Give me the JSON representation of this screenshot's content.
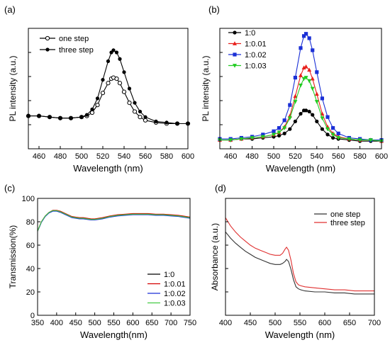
{
  "chart_data": [
    {
      "panel_label": "(a)",
      "type": "line",
      "xlabel": "Wavelength (nm)",
      "ylabel": "PL intensity (a.u.)",
      "xlim": [
        450,
        600
      ],
      "ylim": [
        0,
        1.1
      ],
      "xticks": [
        460,
        480,
        500,
        520,
        540,
        560,
        580,
        600
      ],
      "y_tick_labels_shown": false,
      "legend": "top-left",
      "grid": false,
      "series": [
        {
          "name": "one step",
          "marker": "open-circle",
          "color": "#000000",
          "x": [
            450,
            460,
            470,
            480,
            490,
            500,
            505,
            510,
            515,
            520,
            525,
            528,
            530,
            533,
            536,
            540,
            545,
            550,
            555,
            560,
            570,
            580,
            590,
            600
          ],
          "y": [
            0.3,
            0.3,
            0.29,
            0.28,
            0.28,
            0.29,
            0.3,
            0.33,
            0.4,
            0.51,
            0.6,
            0.64,
            0.65,
            0.64,
            0.6,
            0.52,
            0.42,
            0.34,
            0.29,
            0.26,
            0.24,
            0.23,
            0.23,
            0.23
          ]
        },
        {
          "name": "three step",
          "marker": "filled-circle",
          "color": "#000000",
          "x": [
            450,
            460,
            470,
            480,
            490,
            500,
            505,
            510,
            515,
            520,
            525,
            528,
            530,
            533,
            536,
            540,
            545,
            550,
            555,
            560,
            570,
            580,
            590,
            600
          ],
          "y": [
            0.3,
            0.3,
            0.29,
            0.28,
            0.28,
            0.29,
            0.31,
            0.36,
            0.46,
            0.63,
            0.8,
            0.88,
            0.9,
            0.88,
            0.82,
            0.7,
            0.55,
            0.42,
            0.34,
            0.29,
            0.25,
            0.24,
            0.23,
            0.23
          ]
        }
      ]
    },
    {
      "panel_label": "(b)",
      "type": "line",
      "xlabel": "Wavelength (nm)",
      "ylabel": "PL intensity (a.u.)",
      "xlim": [
        450,
        600
      ],
      "ylim": [
        0,
        1.1
      ],
      "xticks": [
        460,
        480,
        500,
        520,
        540,
        560,
        580,
        600
      ],
      "y_tick_labels_shown": false,
      "legend": "top-left",
      "grid": false,
      "series": [
        {
          "name": "1:0",
          "marker": "circle",
          "color": "#000000",
          "x": [
            450,
            460,
            470,
            480,
            490,
            500,
            505,
            510,
            515,
            520,
            525,
            528,
            530,
            533,
            536,
            540,
            545,
            550,
            555,
            560,
            570,
            580,
            590,
            600
          ],
          "y": [
            0.08,
            0.08,
            0.09,
            0.09,
            0.1,
            0.11,
            0.12,
            0.14,
            0.18,
            0.25,
            0.32,
            0.35,
            0.35,
            0.34,
            0.31,
            0.25,
            0.18,
            0.13,
            0.1,
            0.09,
            0.08,
            0.07,
            0.07,
            0.07
          ]
        },
        {
          "name": "1:0.01",
          "marker": "triangle",
          "color": "#e8201c",
          "x": [
            450,
            460,
            470,
            480,
            490,
            500,
            505,
            510,
            515,
            520,
            525,
            528,
            530,
            533,
            536,
            540,
            545,
            550,
            555,
            560,
            570,
            580,
            590,
            600
          ],
          "y": [
            0.08,
            0.08,
            0.09,
            0.1,
            0.11,
            0.13,
            0.15,
            0.2,
            0.3,
            0.48,
            0.67,
            0.74,
            0.75,
            0.72,
            0.64,
            0.5,
            0.32,
            0.2,
            0.14,
            0.11,
            0.09,
            0.08,
            0.08,
            0.07
          ]
        },
        {
          "name": "1:0.02",
          "marker": "square",
          "color": "#1a2fd6",
          "x": [
            450,
            460,
            470,
            480,
            490,
            500,
            505,
            510,
            515,
            520,
            525,
            528,
            530,
            533,
            536,
            540,
            545,
            550,
            555,
            560,
            570,
            580,
            590,
            600
          ],
          "y": [
            0.09,
            0.09,
            0.1,
            0.11,
            0.13,
            0.16,
            0.19,
            0.26,
            0.4,
            0.65,
            0.92,
            1.03,
            1.05,
            1.01,
            0.9,
            0.7,
            0.46,
            0.29,
            0.19,
            0.14,
            0.1,
            0.09,
            0.08,
            0.08
          ]
        },
        {
          "name": "1:0.03",
          "marker": "down-triangle",
          "color": "#22cc22",
          "x": [
            450,
            460,
            470,
            480,
            490,
            500,
            505,
            510,
            515,
            520,
            525,
            528,
            530,
            533,
            536,
            540,
            545,
            550,
            555,
            560,
            570,
            580,
            590,
            600
          ],
          "y": [
            0.08,
            0.08,
            0.09,
            0.1,
            0.11,
            0.13,
            0.15,
            0.19,
            0.28,
            0.43,
            0.58,
            0.64,
            0.65,
            0.62,
            0.55,
            0.43,
            0.28,
            0.18,
            0.13,
            0.1,
            0.09,
            0.08,
            0.08,
            0.07
          ]
        }
      ]
    },
    {
      "panel_label": "(c)",
      "type": "line",
      "xlabel": "Wavelength(nm)",
      "ylabel": "Transmission(%)",
      "xlim": [
        350,
        750
      ],
      "ylim": [
        0,
        100
      ],
      "xticks": [
        350,
        400,
        450,
        500,
        550,
        600,
        650,
        700,
        750
      ],
      "yticks": [
        0,
        20,
        40,
        60,
        80,
        100
      ],
      "legend": "bottom-right",
      "grid": false,
      "series": [
        {
          "name": "1:0",
          "color": "#000000",
          "x": [
            350,
            355,
            360,
            370,
            380,
            390,
            400,
            410,
            420,
            430,
            440,
            450,
            460,
            470,
            480,
            490,
            500,
            520,
            540,
            560,
            580,
            600,
            620,
            640,
            660,
            680,
            700,
            720,
            740,
            750
          ],
          "y": [
            72,
            76,
            80,
            85,
            88,
            89.5,
            89.5,
            88.5,
            87,
            85.5,
            84,
            83.5,
            83,
            83,
            82.5,
            82,
            82,
            83,
            84.5,
            85.5,
            86,
            86.5,
            86.5,
            86.5,
            86,
            86,
            85.5,
            85,
            84,
            83.5
          ]
        },
        {
          "name": "1:0.01",
          "color": "#d40000",
          "x": [
            350,
            355,
            360,
            370,
            380,
            390,
            400,
            410,
            420,
            430,
            440,
            450,
            460,
            470,
            480,
            490,
            500,
            520,
            540,
            560,
            580,
            600,
            620,
            640,
            660,
            680,
            700,
            720,
            740,
            750
          ],
          "y": [
            72,
            76,
            80,
            85,
            88,
            89.8,
            89.8,
            89,
            87.5,
            86,
            84.5,
            84,
            83.5,
            83.5,
            83,
            82.5,
            82.5,
            83.5,
            85,
            86,
            86.5,
            87,
            87,
            87,
            86.5,
            86.5,
            86,
            85.5,
            84.5,
            84
          ]
        },
        {
          "name": "1:0.02",
          "color": "#1a2fd6",
          "x": [
            350,
            355,
            360,
            370,
            380,
            390,
            400,
            410,
            420,
            430,
            440,
            450,
            460,
            470,
            480,
            490,
            500,
            520,
            540,
            560,
            580,
            600,
            620,
            640,
            660,
            680,
            700,
            720,
            740,
            750
          ],
          "y": [
            72,
            75.5,
            79.5,
            84.5,
            87.5,
            89,
            89,
            88,
            86.5,
            85,
            83.5,
            83,
            82.5,
            82.5,
            82,
            81.5,
            81.5,
            82.5,
            84,
            85,
            85.5,
            86,
            86,
            86,
            85.5,
            85.5,
            85,
            84.5,
            83.5,
            83
          ]
        },
        {
          "name": "1:0.03",
          "color": "#44cc44",
          "x": [
            350,
            355,
            360,
            370,
            380,
            390,
            400,
            410,
            420,
            430,
            440,
            450,
            460,
            470,
            480,
            490,
            500,
            520,
            540,
            560,
            580,
            600,
            620,
            640,
            660,
            680,
            700,
            720,
            740,
            750
          ],
          "y": [
            72,
            76,
            80,
            85,
            88,
            89.5,
            89.5,
            88.5,
            87,
            85.5,
            84,
            83.5,
            83,
            83,
            82.5,
            82,
            82,
            83,
            84.5,
            85.5,
            86,
            86.5,
            86.5,
            86.5,
            86,
            86,
            85.5,
            85,
            84,
            83.5
          ]
        }
      ]
    },
    {
      "panel_label": "(d)",
      "type": "line",
      "xlabel": "Wavelength (nm)",
      "ylabel": "Absorbance (a.u.)",
      "xlim": [
        400,
        700
      ],
      "ylim": [
        0,
        1.15
      ],
      "xticks": [
        400,
        450,
        500,
        550,
        600,
        650,
        700
      ],
      "y_tick_labels_shown": false,
      "legend": "top-right",
      "grid": false,
      "series": [
        {
          "name": "one step",
          "color": "#333333",
          "x": [
            400,
            410,
            420,
            430,
            440,
            450,
            460,
            470,
            480,
            490,
            500,
            505,
            510,
            515,
            520,
            523,
            527,
            532,
            537,
            542,
            547,
            552,
            560,
            580,
            600,
            620,
            640,
            660,
            680,
            700
          ],
          "y": [
            0.82,
            0.76,
            0.71,
            0.67,
            0.63,
            0.6,
            0.57,
            0.55,
            0.53,
            0.51,
            0.5,
            0.5,
            0.5,
            0.51,
            0.53,
            0.55,
            0.53,
            0.45,
            0.35,
            0.28,
            0.26,
            0.25,
            0.24,
            0.23,
            0.23,
            0.22,
            0.22,
            0.21,
            0.21,
            0.21
          ]
        },
        {
          "name": "three step",
          "color": "#e03030",
          "x": [
            400,
            410,
            420,
            430,
            440,
            450,
            460,
            470,
            480,
            490,
            500,
            505,
            510,
            515,
            520,
            523,
            527,
            532,
            537,
            542,
            547,
            552,
            560,
            580,
            600,
            620,
            640,
            660,
            680,
            700
          ],
          "y": [
            0.96,
            0.88,
            0.82,
            0.77,
            0.73,
            0.69,
            0.66,
            0.64,
            0.62,
            0.6,
            0.59,
            0.59,
            0.59,
            0.61,
            0.65,
            0.67,
            0.64,
            0.54,
            0.41,
            0.33,
            0.3,
            0.29,
            0.28,
            0.27,
            0.26,
            0.25,
            0.25,
            0.24,
            0.24,
            0.24
          ]
        }
      ]
    }
  ]
}
